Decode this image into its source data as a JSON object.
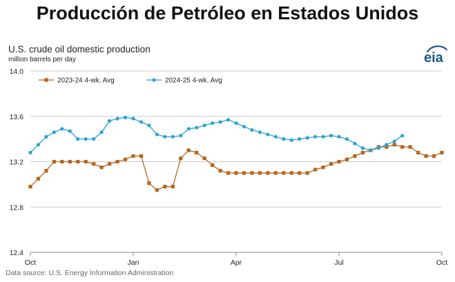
{
  "headline": "Producción de Petróleo en Estados Unidos",
  "source": "Data source: U.S. Energy Information Administration",
  "logo_text": "eia",
  "colors": {
    "series_2023_24": "#b5651d",
    "series_2024_25": "#29a3d6",
    "grid": "#cccccc",
    "logo": "#1a5a8a"
  },
  "chart_data": {
    "type": "line",
    "title": "U.S. crude oil domestic production",
    "ylabel": "million barrels per day",
    "xlabel": "",
    "ylim": [
      12.4,
      14.0
    ],
    "y_ticks": [
      "14.0",
      "13.6",
      "13.2",
      "12.8",
      "12.4"
    ],
    "x_ticks": [
      "Oct",
      "Jan",
      "Apr",
      "Jul",
      "Oct"
    ],
    "x_tick_weeks": [
      0,
      13,
      26,
      39,
      52
    ],
    "grid": "horizontal",
    "legend_position": "top-left",
    "series": [
      {
        "name": "2023-24  4-wk. Avg",
        "marker": "square",
        "x": [
          0,
          1,
          2,
          3,
          4,
          5,
          6,
          7,
          8,
          9,
          10,
          11,
          12,
          13,
          14,
          15,
          16,
          17,
          18,
          19,
          20,
          21,
          22,
          23,
          24,
          25,
          26,
          27,
          28,
          29,
          30,
          31,
          32,
          33,
          34,
          35,
          36,
          37,
          38,
          39,
          40,
          41,
          42,
          43,
          44,
          45,
          46,
          47,
          48,
          49,
          50,
          51,
          52
        ],
        "values": [
          12.98,
          13.05,
          13.12,
          13.2,
          13.2,
          13.2,
          13.2,
          13.2,
          13.18,
          13.15,
          13.18,
          13.2,
          13.22,
          13.25,
          13.25,
          13.01,
          12.95,
          12.98,
          12.98,
          13.23,
          13.3,
          13.28,
          13.23,
          13.17,
          13.12,
          13.1,
          13.1,
          13.1,
          13.1,
          13.1,
          13.1,
          13.1,
          13.1,
          13.1,
          13.1,
          13.1,
          13.13,
          13.15,
          13.18,
          13.2,
          13.22,
          13.25,
          13.28,
          13.3,
          13.33,
          13.33,
          13.35,
          13.33,
          13.33,
          13.28,
          13.25,
          13.25,
          13.28
        ]
      },
      {
        "name": "2024-25  4-wk. Avg",
        "marker": "circle",
        "x": [
          0,
          1,
          2,
          3,
          4,
          5,
          6,
          7,
          8,
          9,
          10,
          11,
          12,
          13,
          14,
          15,
          16,
          17,
          18,
          19,
          20,
          21,
          22,
          23,
          24,
          25,
          26,
          27,
          28,
          29,
          30,
          31,
          32,
          33,
          34,
          35,
          36,
          37,
          38,
          39,
          40,
          41,
          42,
          43,
          44,
          45,
          46,
          47,
          48
        ],
        "values": [
          13.28,
          13.35,
          13.42,
          13.46,
          13.49,
          13.47,
          13.4,
          13.4,
          13.4,
          13.46,
          13.56,
          13.58,
          13.59,
          13.58,
          13.55,
          13.52,
          13.44,
          13.42,
          13.42,
          13.43,
          13.49,
          13.5,
          13.52,
          13.54,
          13.55,
          13.57,
          13.54,
          13.51,
          13.48,
          13.46,
          13.44,
          13.42,
          13.4,
          13.39,
          13.4,
          13.41,
          13.42,
          13.42,
          13.43,
          13.42,
          13.4,
          13.36,
          13.32,
          13.3,
          13.32,
          13.35,
          13.38,
          13.43,
          null
        ]
      }
    ]
  }
}
